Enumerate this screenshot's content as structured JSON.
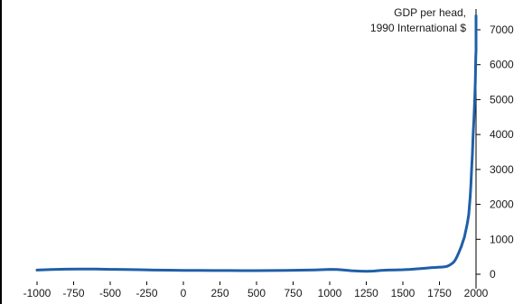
{
  "chart_data": {
    "type": "line",
    "annotation_lines": [
      "GDP per head,",
      "1990 International $"
    ],
    "xlim": [
      -1000,
      2000
    ],
    "ylim": [
      0,
      7500
    ],
    "x_ticks": [
      -1000,
      -750,
      -500,
      -250,
      0,
      250,
      500,
      750,
      1000,
      1250,
      1500,
      1750,
      2000
    ],
    "x_tick_labels": [
      "-1000",
      "-750",
      "-500",
      "-250",
      "0",
      "250",
      "500",
      "750",
      "1000",
      "1250",
      "1500",
      "1750",
      "2000"
    ],
    "y_ticks": [
      0,
      1000,
      2000,
      3000,
      4000,
      5000,
      6000,
      7000
    ],
    "y_tick_labels": [
      "0",
      "1000",
      "2000",
      "3000",
      "4000",
      "5000",
      "6000",
      "7000"
    ],
    "y_axis_position": "right",
    "grid": false,
    "legend": "none",
    "line_color": "#1f5fa8",
    "series": [
      {
        "x": [
          -1000,
          -900,
          -800,
          -700,
          -600,
          -500,
          -400,
          -300,
          -200,
          -100,
          0,
          100,
          200,
          300,
          400,
          500,
          600,
          700,
          800,
          900,
          1000,
          1050,
          1100,
          1150,
          1200,
          1250,
          1300,
          1350,
          1400,
          1450,
          1500,
          1550,
          1600,
          1650,
          1700,
          1720,
          1740,
          1760,
          1780,
          1800,
          1810,
          1820,
          1830,
          1840,
          1850,
          1860,
          1870,
          1880,
          1890,
          1900,
          1910,
          1920,
          1930,
          1940,
          1950,
          1955,
          1960,
          1965,
          1970,
          1975,
          1980,
          1985,
          1990,
          1995,
          1998,
          2000,
          2000
        ],
        "y": [
          120,
          135,
          145,
          150,
          148,
          140,
          135,
          128,
          120,
          115,
          110,
          108,
          106,
          105,
          104,
          104,
          105,
          108,
          115,
          125,
          140,
          135,
          120,
          100,
          90,
          85,
          90,
          110,
          120,
          125,
          130,
          140,
          155,
          170,
          190,
          195,
          200,
          205,
          210,
          225,
          240,
          260,
          290,
          320,
          360,
          420,
          500,
          600,
          700,
          800,
          930,
          1050,
          1250,
          1450,
          1700,
          1950,
          2200,
          2550,
          3000,
          3450,
          4000,
          4400,
          4900,
          5500,
          6200,
          6400,
          7400
        ]
      }
    ]
  }
}
